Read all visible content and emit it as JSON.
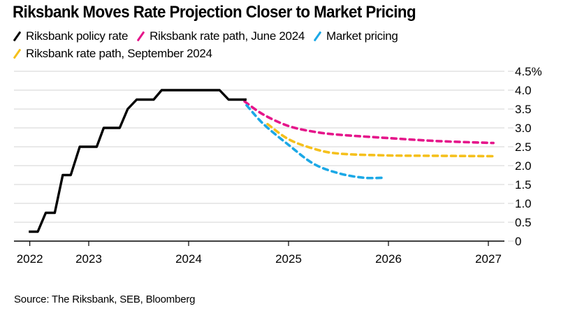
{
  "chart_data": {
    "type": "line",
    "title": "Riksbank Moves Rate Projection Closer to Market Pricing",
    "xlabel": "",
    "ylabel": "",
    "y_unit_suffix": "%",
    "ylim": [
      0,
      4.5
    ],
    "xlim": [
      2022.4,
      2027.15
    ],
    "y_ticks": [
      {
        "value": 0,
        "label": "0"
      },
      {
        "value": 0.5,
        "label": "0.5"
      },
      {
        "value": 1.0,
        "label": "1.0"
      },
      {
        "value": 1.5,
        "label": "1.5"
      },
      {
        "value": 2.0,
        "label": "2.0"
      },
      {
        "value": 2.5,
        "label": "2.5"
      },
      {
        "value": 3.0,
        "label": "3.0"
      },
      {
        "value": 3.5,
        "label": "3.5"
      },
      {
        "value": 4.0,
        "label": "4.0"
      },
      {
        "value": 4.5,
        "label": "4.5%"
      }
    ],
    "x_ticks": [
      {
        "value": 2022.41,
        "label": "2022"
      },
      {
        "value": 2023.0,
        "label": "2023"
      },
      {
        "value": 2024.0,
        "label": "2024"
      },
      {
        "value": 2025.0,
        "label": "2025"
      },
      {
        "value": 2026.0,
        "label": "2026"
      },
      {
        "value": 2027.0,
        "label": "2027"
      }
    ],
    "grid": true,
    "y_axis_side": "right",
    "legend_position": "top-left",
    "series": [
      {
        "name": "Riksbank policy rate",
        "color": "#000000",
        "style": "solid",
        "points": [
          [
            2022.4,
            0.25
          ],
          [
            2022.49,
            0.25
          ],
          [
            2022.57,
            0.75
          ],
          [
            2022.66,
            0.75
          ],
          [
            2022.74,
            1.75
          ],
          [
            2022.82,
            1.75
          ],
          [
            2022.91,
            2.5
          ],
          [
            2023.08,
            2.5
          ],
          [
            2023.15,
            3.0
          ],
          [
            2023.31,
            3.0
          ],
          [
            2023.39,
            3.5
          ],
          [
            2023.48,
            3.75
          ],
          [
            2023.65,
            3.75
          ],
          [
            2023.73,
            4.0
          ],
          [
            2024.31,
            4.0
          ],
          [
            2024.4,
            3.75
          ],
          [
            2024.58,
            3.75
          ]
        ]
      },
      {
        "name": "Riksbank rate path, June 2024",
        "color": "#e5158a",
        "style": "dashed",
        "points": [
          [
            2024.56,
            3.7
          ],
          [
            2024.75,
            3.35
          ],
          [
            2025.0,
            3.05
          ],
          [
            2025.25,
            2.9
          ],
          [
            2025.5,
            2.82
          ],
          [
            2026.0,
            2.73
          ],
          [
            2026.5,
            2.65
          ],
          [
            2027.05,
            2.6
          ]
        ]
      },
      {
        "name": "Market pricing",
        "color": "#1ba8e6",
        "style": "dashed",
        "points": [
          [
            2024.58,
            3.6
          ],
          [
            2024.75,
            3.1
          ],
          [
            2025.0,
            2.55
          ],
          [
            2025.25,
            2.05
          ],
          [
            2025.5,
            1.8
          ],
          [
            2025.75,
            1.68
          ],
          [
            2025.96,
            1.68
          ]
        ]
      },
      {
        "name": "Riksbank rate path, September 2024",
        "color": "#f5c01c",
        "style": "dashed",
        "points": [
          [
            2024.79,
            3.1
          ],
          [
            2025.0,
            2.7
          ],
          [
            2025.25,
            2.45
          ],
          [
            2025.5,
            2.32
          ],
          [
            2026.0,
            2.27
          ],
          [
            2026.5,
            2.26
          ],
          [
            2027.05,
            2.25
          ]
        ]
      }
    ],
    "source": "Source: The Riksbank, SEB, Bloomberg"
  },
  "legend_rows": [
    [
      0,
      1,
      2
    ],
    [
      3
    ]
  ]
}
